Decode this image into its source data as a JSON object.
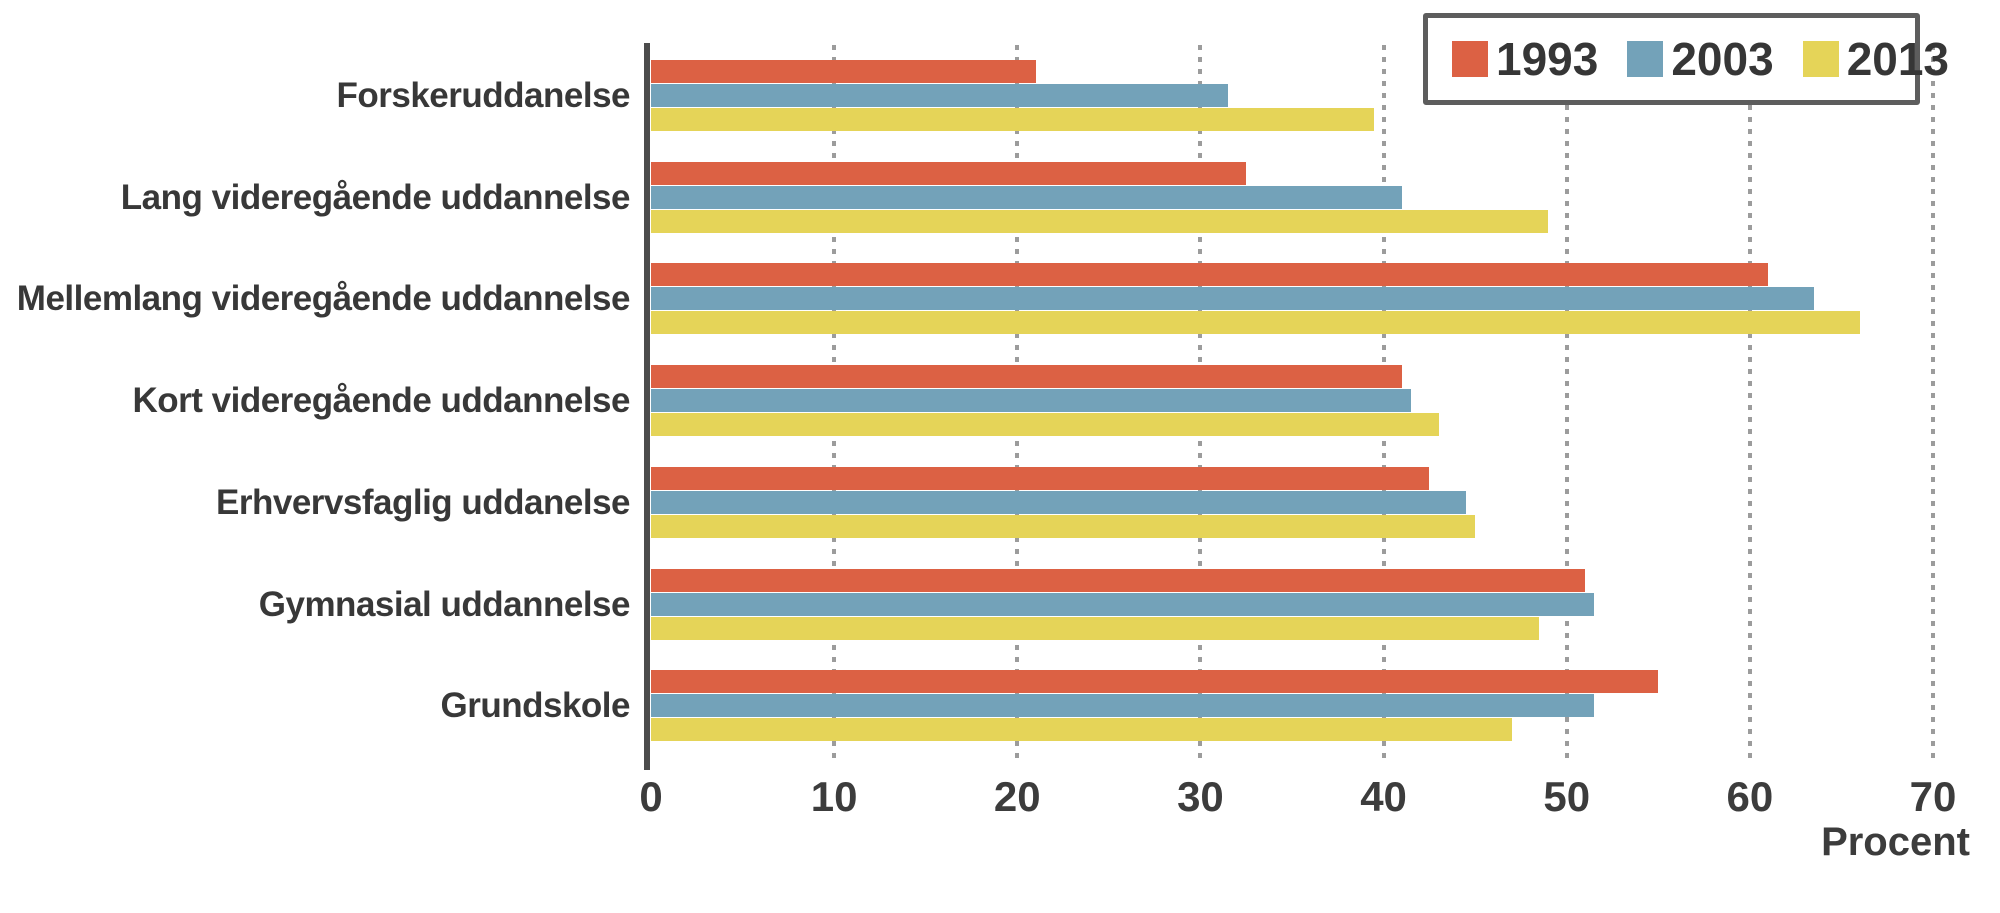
{
  "chart_data": {
    "type": "bar",
    "orientation": "horizontal",
    "title": "",
    "xlabel": "Procent",
    "ylabel": "",
    "xlim": [
      0,
      70
    ],
    "xticks": [
      0,
      10,
      20,
      30,
      40,
      50,
      60,
      70
    ],
    "grid": "dotted-vertical",
    "legend_position": "top-right",
    "categories": [
      "Forskeruddanelse",
      "Lang videregående uddannelse",
      "Mellemlang videregående uddannelse",
      "Kort videregående uddannelse",
      "Erhvervsfaglig uddanelse",
      "Gymnasial uddannelse",
      "Grundskole"
    ],
    "series": [
      {
        "name": "1993",
        "color": "#dc6144",
        "values": [
          21,
          32.5,
          61,
          41,
          42.5,
          51,
          55
        ]
      },
      {
        "name": "2003",
        "color": "#73a2b9",
        "values": [
          31.5,
          41,
          63.5,
          41.5,
          44.5,
          51.5,
          51.5
        ]
      },
      {
        "name": "2013",
        "color": "#e5d458",
        "values": [
          39.5,
          49,
          66,
          43,
          45,
          48.5,
          47
        ]
      }
    ]
  },
  "colors": {
    "axis": "#4c4c4c",
    "gridline": "#9c9c9c",
    "text": "#363636",
    "legend_border": "#5d5d5d",
    "background": "#ffffff"
  }
}
